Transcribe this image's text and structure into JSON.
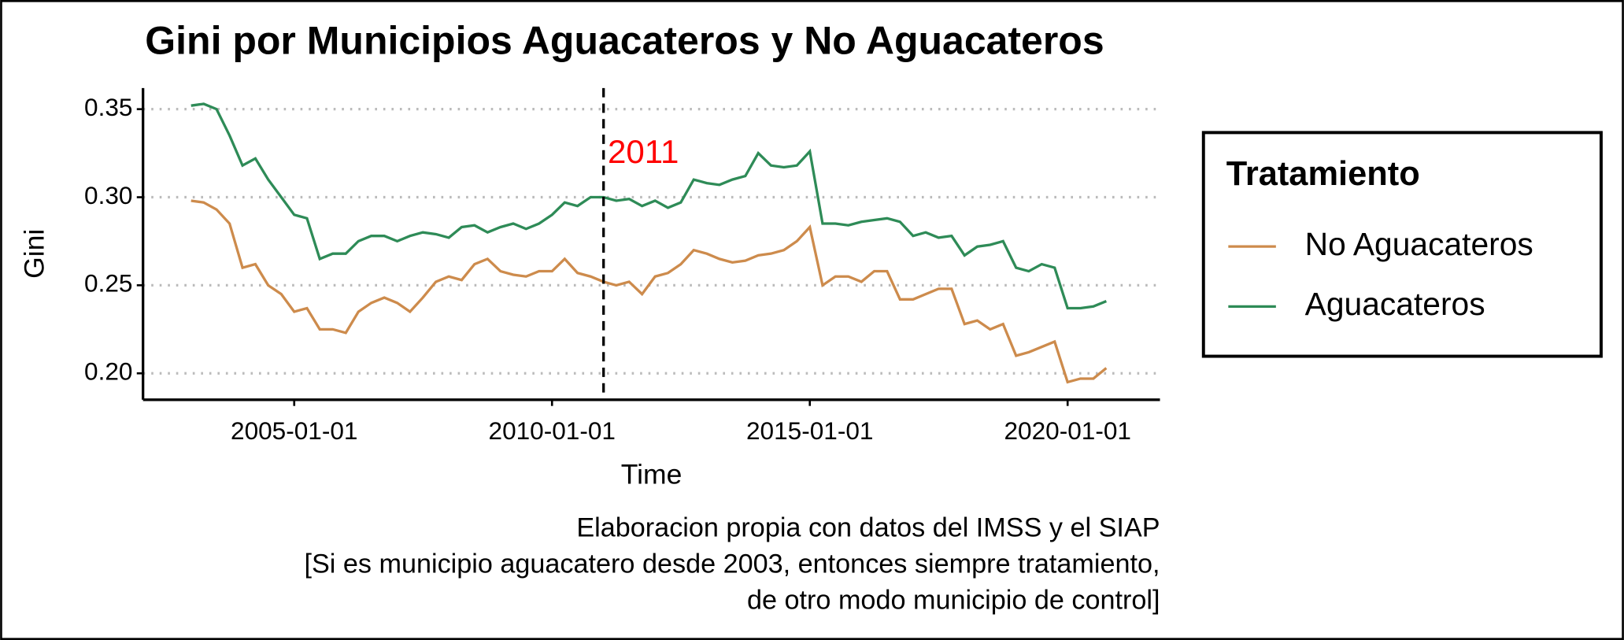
{
  "chart_data": {
    "type": "line",
    "title": "Gini por Municipios Aguacateros y No Aguacateros",
    "x_label": "Time",
    "y_label": "Gini",
    "caption": [
      "Elaboracion propia con datos del IMSS y el SIAP",
      "[Si es municipio aguacatero desde 2003, entonces siempre tratamiento,",
      "de otro modo municipio de control]"
    ],
    "legend_title": "Tratamiento",
    "legend_position": "right",
    "grid": true,
    "vline": {
      "x": "2011-01-01",
      "label": "2011",
      "label_color": "#ff0000"
    },
    "xlim": [
      "2002-01-26",
      "2021-10-16"
    ],
    "xticks": [
      "2005-01-01",
      "2010-01-01",
      "2015-01-01",
      "2020-01-01"
    ],
    "ylim": [
      0.185,
      0.362
    ],
    "yticks": [
      {
        "value": 0.2,
        "label": "0.20"
      },
      0.25,
      {
        "value": 0.3,
        "label": "0.30"
      },
      0.35
    ],
    "x": [
      "2003-01-01",
      "2003-04-01",
      "2003-07-01",
      "2003-10-01",
      "2004-01-01",
      "2004-04-01",
      "2004-07-01",
      "2004-10-01",
      "2005-01-01",
      "2005-04-01",
      "2005-07-01",
      "2005-10-01",
      "2006-01-01",
      "2006-04-01",
      "2006-07-01",
      "2006-10-01",
      "2007-01-01",
      "2007-04-01",
      "2007-07-01",
      "2007-10-01",
      "2008-01-01",
      "2008-04-01",
      "2008-07-01",
      "2008-10-01",
      "2009-01-01",
      "2009-04-01",
      "2009-07-01",
      "2009-10-01",
      "2010-01-01",
      "2010-04-01",
      "2010-07-01",
      "2010-10-01",
      "2011-01-01",
      "2011-04-01",
      "2011-07-01",
      "2011-10-01",
      "2012-01-01",
      "2012-04-01",
      "2012-07-01",
      "2012-10-01",
      "2013-01-01",
      "2013-04-01",
      "2013-07-01",
      "2013-10-01",
      "2014-01-01",
      "2014-04-01",
      "2014-07-01",
      "2014-10-01",
      "2015-01-01",
      "2015-04-01",
      "2015-07-01",
      "2015-10-01",
      "2016-01-01",
      "2016-04-01",
      "2016-07-01",
      "2016-10-01",
      "2017-01-01",
      "2017-04-01",
      "2017-07-01",
      "2017-10-01",
      "2018-01-01",
      "2018-04-01",
      "2018-07-01",
      "2018-10-01",
      "2019-01-01",
      "2019-04-01",
      "2019-07-01",
      "2019-10-01",
      "2020-01-01",
      "2020-04-01",
      "2020-07-01",
      "2020-10-01"
    ],
    "series": [
      {
        "name": "No Aguacateros",
        "color": "#cd8b4c",
        "values": [
          0.298,
          0.297,
          0.293,
          0.285,
          0.26,
          0.262,
          0.25,
          0.245,
          0.235,
          0.237,
          0.225,
          0.225,
          0.223,
          0.235,
          0.24,
          0.243,
          0.24,
          0.235,
          0.243,
          0.252,
          0.255,
          0.253,
          0.262,
          0.265,
          0.258,
          0.256,
          0.255,
          0.258,
          0.258,
          0.265,
          0.257,
          0.255,
          0.252,
          0.25,
          0.252,
          0.245,
          0.255,
          0.257,
          0.262,
          0.27,
          0.268,
          0.265,
          0.263,
          0.264,
          0.267,
          0.268,
          0.27,
          0.275,
          0.283,
          0.25,
          0.255,
          0.255,
          0.252,
          0.258,
          0.258,
          0.242,
          0.242,
          0.245,
          0.248,
          0.248,
          0.228,
          0.23,
          0.225,
          0.228,
          0.21,
          0.212,
          0.215,
          0.218,
          0.195,
          0.197,
          0.197,
          0.203
        ]
      },
      {
        "name": "Aguacateros",
        "color": "#2e8b57",
        "values": [
          0.352,
          0.353,
          0.35,
          0.335,
          0.318,
          0.322,
          0.31,
          0.3,
          0.29,
          0.288,
          0.265,
          0.268,
          0.268,
          0.275,
          0.278,
          0.278,
          0.275,
          0.278,
          0.28,
          0.279,
          0.277,
          0.283,
          0.284,
          0.28,
          0.283,
          0.285,
          0.282,
          0.285,
          0.29,
          0.297,
          0.295,
          0.3,
          0.3,
          0.298,
          0.299,
          0.295,
          0.298,
          0.294,
          0.297,
          0.31,
          0.308,
          0.307,
          0.31,
          0.312,
          0.325,
          0.318,
          0.317,
          0.318,
          0.326,
          0.285,
          0.285,
          0.284,
          0.286,
          0.287,
          0.288,
          0.286,
          0.278,
          0.28,
          0.277,
          0.278,
          0.267,
          0.272,
          0.273,
          0.275,
          0.26,
          0.258,
          0.262,
          0.26,
          0.237,
          0.237,
          0.238,
          0.241
        ]
      }
    ]
  }
}
